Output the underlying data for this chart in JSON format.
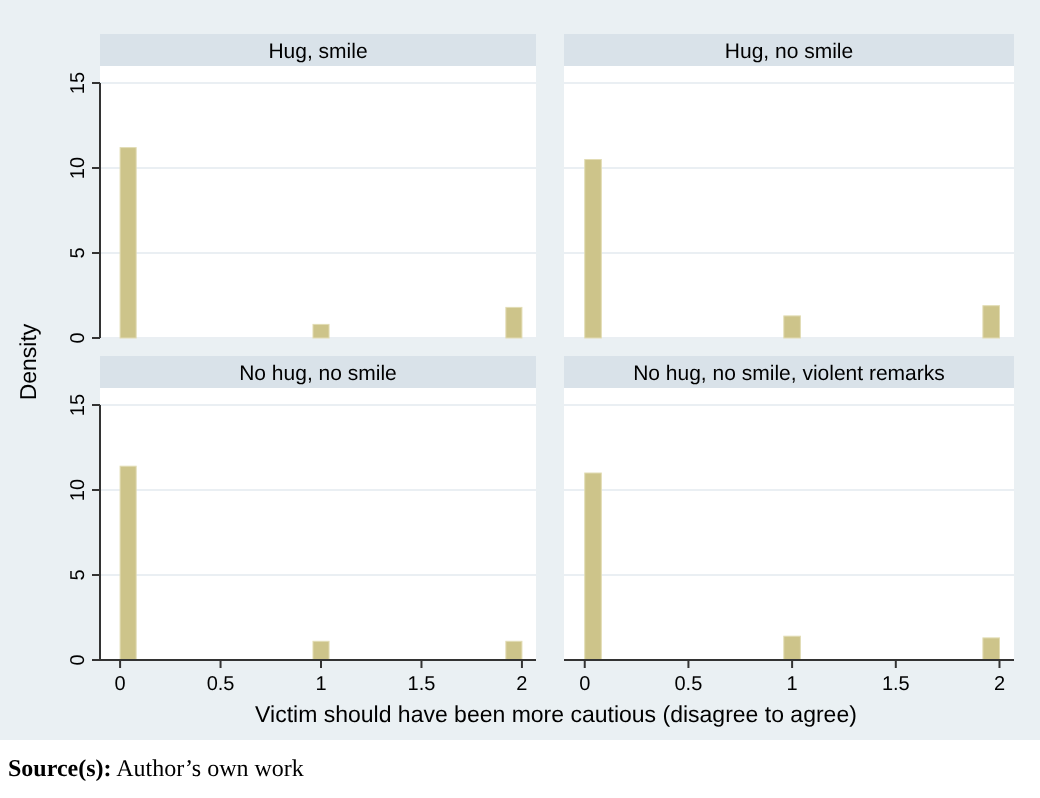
{
  "chart_data": [
    {
      "type": "histogram",
      "title": "Hug, smile",
      "ylabel": "Density",
      "xlabel": "Victim should have been more cautious (disagree to agree)",
      "annotations": [
        "Source(s): Author’s own work"
      ],
      "bins": [
        0,
        0.08,
        0.96,
        1.04,
        1.92,
        2
      ],
      "values": [
        11.2,
        0,
        0.8,
        0,
        1.8
      ],
      "color": "#cdc48a",
      "xlim": [
        -0.1,
        2.07
      ],
      "ylim": [
        0,
        16
      ],
      "yticks": [
        0,
        5,
        10,
        15
      ],
      "grid": "y",
      "tick_labels": "y"
    },
    {
      "type": "histogram",
      "title": "Hug, no smile",
      "bins": [
        0,
        0.08,
        0.96,
        1.04,
        1.92,
        2
      ],
      "values": [
        10.5,
        0,
        1.3,
        0,
        1.9
      ],
      "color": "#cdc48a",
      "xlim": [
        -0.1,
        2.07
      ],
      "ylim": [
        0,
        16
      ],
      "yticks": [
        0,
        5,
        10,
        15
      ],
      "grid": "y",
      "tick_labels": false
    },
    {
      "type": "histogram",
      "title": "No hug, no smile",
      "bins": [
        0,
        0.08,
        0.96,
        1.04,
        1.92,
        2
      ],
      "values": [
        11.4,
        0,
        1.1,
        0,
        1.1
      ],
      "color": "#cdc48a",
      "xlim": [
        -0.1,
        2.07
      ],
      "ylim": [
        0,
        16
      ],
      "xticks": [
        0,
        0.5,
        1,
        1.5,
        2
      ],
      "yticks": [
        0,
        5,
        10,
        15
      ],
      "grid": "y"
    },
    {
      "type": "histogram",
      "title": "No hug, no smile, violent remarks",
      "bins": [
        0,
        0.08,
        0.96,
        1.04,
        1.92,
        2
      ],
      "values": [
        11.0,
        0,
        1.4,
        0,
        1.3
      ],
      "color": "#cdc48a",
      "xlim": [
        -0.1,
        2.07
      ],
      "ylim": [
        0,
        16
      ],
      "xticks": [
        0,
        0.5,
        1,
        1.5,
        2
      ],
      "yticks": [
        0,
        5,
        10,
        15
      ],
      "grid": "y",
      "tick_labels": "x"
    }
  ]
}
